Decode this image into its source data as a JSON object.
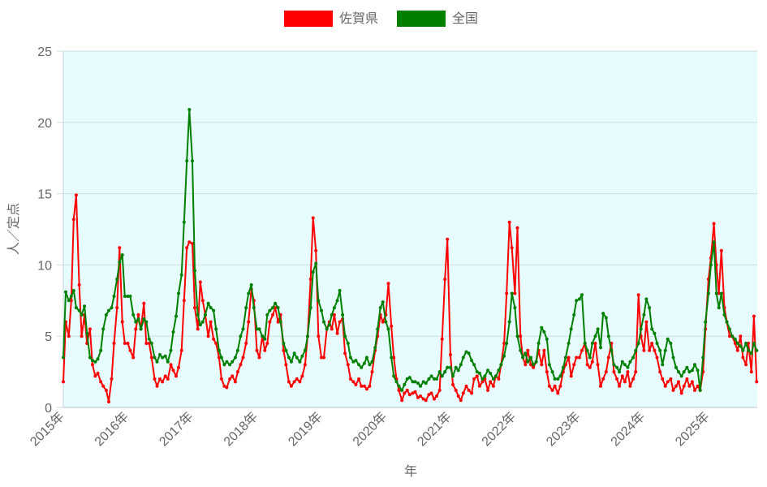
{
  "chart_data": {
    "type": "line",
    "title": "",
    "xlabel": "年",
    "ylabel": "人／定点",
    "ylim": [
      0,
      25
    ],
    "yticks": [
      "0",
      "5",
      "10",
      "15",
      "20",
      "25"
    ],
    "xlim": [
      "2015-01-01",
      "2025-10-04"
    ],
    "xticks": [
      "2015年",
      "2016年",
      "2017年",
      "2018年",
      "2019年",
      "2020年",
      "2021年",
      "2022年",
      "2023年",
      "2024年",
      "2025年"
    ],
    "grid": "horizontal",
    "legend": "top",
    "plot_background": "#e6fcff",
    "x": [
      "2015-01-01",
      "2015-01-15",
      "2015-02-01",
      "2015-02-15",
      "2015-03-01",
      "2015-03-15",
      "2015-04-01",
      "2015-04-15",
      "2015-05-01",
      "2015-05-15",
      "2015-06-01",
      "2015-06-15",
      "2015-07-01",
      "2015-07-15",
      "2015-08-01",
      "2015-08-15",
      "2015-09-01",
      "2015-09-15",
      "2015-10-01",
      "2015-10-15",
      "2015-11-01",
      "2015-11-15",
      "2015-12-01",
      "2015-12-15",
      "2016-01-01",
      "2016-01-15",
      "2016-02-01",
      "2016-02-15",
      "2016-03-01",
      "2016-03-15",
      "2016-04-01",
      "2016-04-15",
      "2016-05-01",
      "2016-05-15",
      "2016-06-01",
      "2016-06-15",
      "2016-07-01",
      "2016-07-15",
      "2016-08-01",
      "2016-08-15",
      "2016-09-01",
      "2016-09-15",
      "2016-10-01",
      "2016-10-15",
      "2016-11-01",
      "2016-11-15",
      "2016-12-01",
      "2016-12-15",
      "2017-01-01",
      "2017-01-15",
      "2017-02-01",
      "2017-02-15",
      "2017-03-01",
      "2017-03-15",
      "2017-04-01",
      "2017-04-15",
      "2017-05-01",
      "2017-05-15",
      "2017-06-01",
      "2017-06-15",
      "2017-07-01",
      "2017-07-15",
      "2017-08-01",
      "2017-08-15",
      "2017-09-01",
      "2017-09-15",
      "2017-10-01",
      "2017-10-15",
      "2017-11-01",
      "2017-11-15",
      "2017-12-01",
      "2017-12-15",
      "2018-01-01",
      "2018-01-15",
      "2018-02-01",
      "2018-02-15",
      "2018-03-01",
      "2018-03-15",
      "2018-04-01",
      "2018-04-15",
      "2018-05-01",
      "2018-05-15",
      "2018-06-01",
      "2018-06-15",
      "2018-07-01",
      "2018-07-15",
      "2018-08-01",
      "2018-08-15",
      "2018-09-01",
      "2018-09-15",
      "2018-10-01",
      "2018-10-15",
      "2018-11-01",
      "2018-11-15",
      "2018-12-01",
      "2018-12-15",
      "2019-01-01",
      "2019-01-15",
      "2019-02-01",
      "2019-02-15",
      "2019-03-01",
      "2019-03-15",
      "2019-04-01",
      "2019-04-15",
      "2019-05-01",
      "2019-05-15",
      "2019-06-01",
      "2019-06-15",
      "2019-07-01",
      "2019-07-15",
      "2019-08-01",
      "2019-08-15",
      "2019-09-01",
      "2019-09-15",
      "2019-10-01",
      "2019-10-15",
      "2019-11-01",
      "2019-11-15",
      "2019-12-01",
      "2019-12-15",
      "2020-01-01",
      "2020-01-15",
      "2020-02-01",
      "2020-02-15",
      "2020-03-01",
      "2020-03-15",
      "2020-04-01",
      "2020-04-15",
      "2020-05-01",
      "2020-05-15",
      "2020-06-01",
      "2020-06-15",
      "2020-07-01",
      "2020-07-15",
      "2020-08-01",
      "2020-08-15",
      "2020-09-01",
      "2020-09-15",
      "2020-10-01",
      "2020-10-15",
      "2020-11-01",
      "2020-11-15",
      "2020-12-01",
      "2020-12-15",
      "2021-01-01",
      "2021-01-15",
      "2021-02-01",
      "2021-02-15",
      "2021-03-01",
      "2021-03-15",
      "2021-04-01",
      "2021-04-15",
      "2021-05-01",
      "2021-05-15",
      "2021-06-01",
      "2021-06-15",
      "2021-07-01",
      "2021-07-15",
      "2021-08-01",
      "2021-08-15",
      "2021-09-01",
      "2021-09-15",
      "2021-10-01",
      "2021-10-15",
      "2021-11-01",
      "2021-11-15",
      "2021-12-01",
      "2021-12-15",
      "2022-01-01",
      "2022-01-15",
      "2022-02-01",
      "2022-02-15",
      "2022-03-01",
      "2022-03-15",
      "2022-04-01",
      "2022-04-15",
      "2022-05-01",
      "2022-05-15",
      "2022-06-01",
      "2022-06-15",
      "2022-07-01",
      "2022-07-15",
      "2022-08-01",
      "2022-08-15",
      "2022-09-01",
      "2022-09-15",
      "2022-10-01",
      "2022-10-15",
      "2022-11-01",
      "2022-11-15",
      "2022-12-01",
      "2022-12-15",
      "2023-01-01",
      "2023-01-15",
      "2023-02-01",
      "2023-02-15",
      "2023-03-01",
      "2023-03-15",
      "2023-04-01",
      "2023-04-15",
      "2023-05-01",
      "2023-05-15",
      "2023-06-01",
      "2023-06-15",
      "2023-07-01",
      "2023-07-15",
      "2023-08-01",
      "2023-08-15",
      "2023-09-01",
      "2023-09-15",
      "2023-10-01",
      "2023-10-15",
      "2023-11-01",
      "2023-11-15",
      "2023-12-01",
      "2023-12-15",
      "2024-01-01",
      "2024-01-15",
      "2024-02-01",
      "2024-02-15",
      "2024-03-01",
      "2024-03-15",
      "2024-04-01",
      "2024-04-15",
      "2024-05-01",
      "2024-05-15",
      "2024-06-01",
      "2024-06-15",
      "2024-07-01",
      "2024-07-15",
      "2024-08-01",
      "2024-08-15",
      "2024-09-01",
      "2024-09-15",
      "2024-10-01",
      "2024-10-15",
      "2024-11-01",
      "2024-11-15",
      "2024-12-01",
      "2024-12-15",
      "2025-01-01",
      "2025-01-15",
      "2025-02-01",
      "2025-02-15",
      "2025-03-01",
      "2025-03-15",
      "2025-04-01",
      "2025-04-15",
      "2025-05-01",
      "2025-05-15",
      "2025-06-01",
      "2025-06-15",
      "2025-07-01",
      "2025-07-15",
      "2025-08-01",
      "2025-08-15",
      "2025-09-01",
      "2025-09-15",
      "2025-10-01"
    ],
    "series": [
      {
        "name": "佐賀県",
        "color": "#ff0000",
        "values": [
          1.8,
          6,
          5,
          7.5,
          13.2,
          14.9,
          8.6,
          5,
          6.5,
          4.5,
          5.5,
          3,
          2.2,
          2.4,
          1.8,
          1.5,
          1.2,
          0.4,
          2,
          4.5,
          7,
          11.2,
          6,
          4.5,
          4.5,
          4.0,
          3.5,
          5.5,
          6.5,
          5.5,
          7.3,
          4.5,
          4.5,
          3.5,
          2.0,
          1.5,
          2.0,
          1.8,
          2.2,
          2.0,
          3.0,
          2.6,
          2.2,
          2.8,
          4.0,
          7.5,
          11.2,
          11.6,
          11.5,
          7.0,
          5.5,
          8.8,
          7.5,
          6.5,
          5.0,
          6.0,
          4.8,
          4.5,
          3.5,
          2.0,
          1.5,
          1.4,
          2.0,
          2.2,
          1.8,
          2.5,
          3.0,
          3.5,
          4.5,
          6.0,
          8.3,
          7.5,
          4.0,
          3.5,
          5.0,
          4.0,
          4.5,
          6.0,
          6.5,
          7.0,
          6.0,
          6.5,
          4.0,
          3.0,
          1.8,
          1.5,
          1.8,
          2.0,
          1.8,
          2.2,
          3.0,
          5.0,
          9.0,
          13.3,
          11.0,
          5.0,
          3.5,
          3.5,
          5.5,
          6.0,
          5.5,
          6.5,
          5.2,
          6.0,
          6.2,
          3.8,
          3.0,
          2.0,
          1.8,
          1.6,
          2.0,
          1.5,
          1.5,
          1.3,
          1.5,
          2.5,
          4.0,
          5.0,
          6.5,
          6.0,
          6.5,
          8.7,
          5.7,
          3.5,
          2.0,
          1.2,
          0.5,
          1.0,
          1.2,
          0.9,
          1.0,
          1.1,
          0.7,
          0.8,
          0.6,
          0.5,
          0.9,
          1.0,
          0.6,
          0.8,
          1.2,
          4.8,
          9.0,
          11.8,
          3.7,
          1.6,
          1.2,
          0.8,
          0.5,
          1.0,
          1.5,
          1.2,
          1.0,
          2.0,
          2.2,
          1.5,
          1.8,
          2.0,
          1.2,
          1.8,
          1.5,
          2.2,
          2.0,
          3.0,
          4.5,
          8.0,
          13.0,
          11.2,
          8.0,
          12.6,
          5.0,
          3.5,
          3.0,
          4.0,
          3.0,
          2.8,
          3.2,
          4.0,
          3.0,
          4.0,
          2.5,
          1.5,
          1.2,
          1.5,
          1.0,
          1.5,
          2.5,
          3.0,
          3.5,
          2.2,
          3.0,
          3.5,
          3.5,
          4.0,
          4.5,
          3.0,
          2.8,
          3.2,
          4.5,
          3.0,
          1.5,
          2.0,
          2.5,
          3.5,
          4.5,
          2.5,
          2.0,
          1.5,
          2.2,
          1.8,
          2.5,
          1.5,
          2.0,
          2.5,
          7.9,
          5.0,
          4.0,
          6.0,
          4.0,
          4.5,
          4.0,
          3.5,
          2.5,
          2.0,
          1.5,
          1.8,
          2.0,
          1.2,
          1.5,
          1.8,
          1.0,
          1.5,
          2.0,
          1.5,
          1.8,
          1.2,
          1.5,
          1.2,
          2.5,
          5.5,
          9.0,
          10.5,
          12.9,
          10,
          8,
          11,
          7,
          6,
          5,
          5,
          4.5,
          4.0,
          5.0,
          3.5,
          3.0,
          4.5,
          2.5,
          6.4,
          1.8
        ]
      },
      {
        "name": "全国",
        "color": "#008000",
        "values": [
          3.5,
          8.1,
          7.5,
          7.8,
          8.2,
          7,
          6.8,
          6.5,
          7.1,
          5.2,
          3.5,
          3.3,
          3.2,
          3.4,
          4,
          5.5,
          6.5,
          6.8,
          7,
          7.8,
          9,
          10.2,
          10.7,
          7.8,
          7.8,
          7.8,
          6.5,
          6.0,
          6.2,
          5.5,
          6.2,
          6.0,
          4.8,
          4.5,
          3.5,
          3.2,
          3.7,
          3.5,
          3.6,
          3.2,
          4.0,
          5.3,
          6.4,
          8.0,
          9.3,
          13.0,
          17.3,
          20.9,
          17.3,
          9.6,
          6.5,
          5.8,
          6.0,
          6.5,
          7.3,
          7.0,
          6.8,
          5.5,
          4.0,
          3.5,
          3.0,
          3.2,
          3.0,
          3.2,
          3.5,
          4.0,
          5.0,
          5.5,
          7.0,
          8.0,
          8.6,
          7.0,
          5.5,
          5.5,
          5.0,
          4.8,
          6.5,
          6.8,
          7.0,
          7.3,
          7.0,
          6.0,
          4.5,
          4.0,
          3.5,
          3.2,
          3.8,
          3.5,
          3.2,
          3.6,
          4.0,
          5.0,
          7.0,
          9.5,
          10.1,
          7.5,
          6.8,
          6.0,
          5.5,
          5.8,
          6.5,
          7.0,
          7.5,
          8.2,
          6.5,
          5.0,
          4.5,
          3.5,
          3.2,
          3.3,
          3.0,
          2.8,
          3.1,
          3.5,
          3.0,
          3.2,
          4.2,
          5.5,
          7.0,
          7.4,
          6.0,
          5.5,
          3.5,
          2.2,
          1.8,
          1.5,
          1.2,
          1.6,
          2.0,
          2.1,
          1.8,
          1.8,
          1.7,
          1.5,
          1.8,
          1.7,
          2.0,
          2.2,
          2.0,
          2.0,
          2.5,
          2.2,
          2.5,
          2.8,
          2.8,
          2.2,
          2.8,
          2.6,
          3.0,
          3.5,
          3.9,
          3.8,
          3.3,
          3.0,
          2.5,
          2.4,
          2.0,
          2.2,
          2.6,
          2.4,
          2.0,
          2.2,
          2.6,
          3.0,
          3.6,
          4.5,
          6.0,
          8.0,
          7.0,
          5.0,
          4.0,
          3.5,
          3.8,
          3.2,
          3.5,
          3.0,
          3.2,
          4.5,
          5.6,
          5.3,
          4.8,
          3.0,
          2.5,
          2.0,
          2.0,
          2.2,
          2.8,
          3.5,
          4.5,
          5.5,
          6.5,
          7.5,
          7.6,
          7.9,
          4.5,
          4.0,
          3.5,
          4.5,
          5.0,
          5.5,
          4.2,
          6.6,
          6.3,
          5.0,
          4.0,
          3.0,
          2.8,
          2.5,
          3.2,
          3.0,
          2.8,
          3.2,
          3.5,
          4.0,
          4.5,
          5.5,
          6.5,
          7.6,
          7.0,
          5.5,
          5.2,
          4.5,
          4.0,
          3.0,
          4.0,
          4.8,
          4.5,
          3.5,
          2.8,
          2.5,
          2.2,
          2.5,
          2.8,
          2.5,
          2.6,
          3.0,
          2.6,
          1.2,
          3.5,
          6.0,
          8.0,
          10.0,
          11.6,
          8,
          7,
          8,
          6.5,
          6.0,
          5.5,
          5.0,
          4.8,
          4.5,
          4.3,
          4.0,
          4.5,
          4.0,
          3.8,
          4.5,
          4.0
        ]
      }
    ]
  }
}
